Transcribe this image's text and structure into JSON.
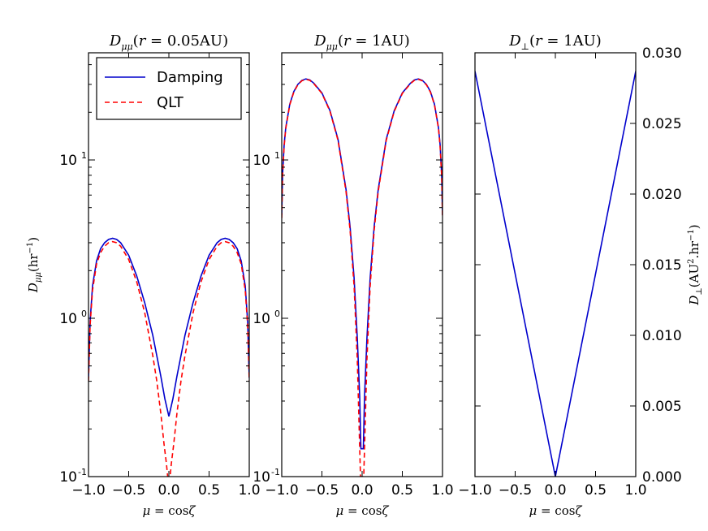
{
  "chart_data": [
    {
      "type": "line",
      "title": "D_μμ(r = 0.05AU)",
      "xlabel": "μ = cos ζ",
      "ylabel": "D_μμ(hr⁻¹)",
      "yscale": "log",
      "xlim": [
        -1.0,
        1.0
      ],
      "ylim": [
        0.1,
        50
      ],
      "xticks": [
        "−1.0",
        "−0.5",
        "0.0",
        "0.5",
        "1.0"
      ],
      "yticks": [
        "10⁻¹",
        "10⁰",
        "10¹"
      ],
      "legend": {
        "position": "top-left",
        "entries": [
          "Damping",
          "QLT"
        ]
      },
      "series": [
        {
          "name": "Damping",
          "color": "#0000cc",
          "style": "solid",
          "x": [
            -1.0,
            -0.98,
            -0.95,
            -0.9,
            -0.85,
            -0.8,
            -0.75,
            -0.7,
            -0.65,
            -0.6,
            -0.5,
            -0.4,
            -0.3,
            -0.2,
            -0.1,
            -0.05,
            0.0,
            0.05,
            0.1,
            0.2,
            0.3,
            0.4,
            0.5,
            0.6,
            0.65,
            0.7,
            0.75,
            0.8,
            0.85,
            0.9,
            0.95,
            0.98,
            1.0
          ],
          "y": [
            0.42,
            0.95,
            1.6,
            2.3,
            2.75,
            3.0,
            3.15,
            3.2,
            3.15,
            3.0,
            2.5,
            1.85,
            1.25,
            0.78,
            0.43,
            0.31,
            0.24,
            0.31,
            0.43,
            0.78,
            1.25,
            1.85,
            2.5,
            3.0,
            3.15,
            3.2,
            3.15,
            3.0,
            2.75,
            2.3,
            1.6,
            0.95,
            0.42
          ]
        },
        {
          "name": "QLT",
          "color": "#ff0000",
          "style": "dashed",
          "x": [
            -1.0,
            -0.98,
            -0.95,
            -0.9,
            -0.85,
            -0.8,
            -0.75,
            -0.7,
            -0.65,
            -0.6,
            -0.5,
            -0.4,
            -0.3,
            -0.2,
            -0.15,
            -0.1,
            -0.06,
            -0.03,
            -0.015,
            0.015,
            0.03,
            0.06,
            0.1,
            0.15,
            0.2,
            0.3,
            0.4,
            0.5,
            0.6,
            0.65,
            0.7,
            0.75,
            0.8,
            0.85,
            0.9,
            0.95,
            0.98,
            1.0
          ],
          "y": [
            0.4,
            0.9,
            1.5,
            2.2,
            2.6,
            2.85,
            3.0,
            3.05,
            3.0,
            2.85,
            2.35,
            1.7,
            1.08,
            0.58,
            0.4,
            0.25,
            0.16,
            0.12,
            0.1,
            0.1,
            0.12,
            0.16,
            0.25,
            0.4,
            0.58,
            1.08,
            1.7,
            2.35,
            2.85,
            3.0,
            3.05,
            3.0,
            2.85,
            2.6,
            2.2,
            1.5,
            0.9,
            0.4
          ]
        }
      ]
    },
    {
      "type": "line",
      "title": "D_μμ(r = 1AU)",
      "xlabel": "μ = cos ζ",
      "yscale": "log",
      "xlim": [
        -1.0,
        1.0
      ],
      "ylim": [
        0.1,
        50
      ],
      "xticks": [
        "−1.0",
        "−0.5",
        "0.0",
        "0.5",
        "1.0"
      ],
      "yticks": [
        "10⁻¹",
        "10⁰",
        "10¹"
      ],
      "series": [
        {
          "name": "Damping",
          "color": "#0000cc",
          "style": "solid",
          "x": [
            -1.0,
            -0.99,
            -0.97,
            -0.95,
            -0.9,
            -0.85,
            -0.8,
            -0.75,
            -0.7,
            -0.65,
            -0.6,
            -0.5,
            -0.4,
            -0.3,
            -0.2,
            -0.15,
            -0.1,
            -0.06,
            -0.03,
            -0.015,
            0.015,
            0.03,
            0.06,
            0.1,
            0.15,
            0.2,
            0.3,
            0.4,
            0.5,
            0.6,
            0.65,
            0.7,
            0.75,
            0.8,
            0.85,
            0.9,
            0.95,
            0.97,
            0.99,
            1.0
          ],
          "y": [
            4.5,
            8.0,
            12.5,
            16.0,
            22.5,
            27.0,
            30.0,
            31.8,
            32.5,
            32.0,
            30.5,
            26.5,
            20.5,
            13.5,
            6.5,
            3.8,
            1.8,
            0.75,
            0.32,
            0.15,
            0.15,
            0.32,
            0.75,
            1.8,
            3.8,
            6.5,
            13.5,
            20.5,
            26.5,
            30.5,
            32.0,
            32.5,
            31.8,
            30.0,
            27.0,
            22.5,
            16.0,
            12.5,
            8.0,
            4.5
          ]
        },
        {
          "name": "QLT",
          "color": "#ff0000",
          "style": "dashed",
          "x": [
            -1.0,
            -0.99,
            -0.97,
            -0.95,
            -0.9,
            -0.85,
            -0.8,
            -0.75,
            -0.7,
            -0.65,
            -0.6,
            -0.5,
            -0.4,
            -0.3,
            -0.2,
            -0.15,
            -0.1,
            -0.06,
            -0.03,
            -0.02,
            0.02,
            0.03,
            0.06,
            0.1,
            0.15,
            0.2,
            0.3,
            0.4,
            0.5,
            0.6,
            0.65,
            0.7,
            0.75,
            0.8,
            0.85,
            0.9,
            0.95,
            0.97,
            0.99,
            1.0
          ],
          "y": [
            4.3,
            7.8,
            12.2,
            15.8,
            22.3,
            26.8,
            29.8,
            31.6,
            32.3,
            31.8,
            30.3,
            26.3,
            20.3,
            13.3,
            6.3,
            3.6,
            1.6,
            0.55,
            0.15,
            0.1,
            0.1,
            0.15,
            0.55,
            1.6,
            3.6,
            6.3,
            13.3,
            20.3,
            26.3,
            30.3,
            31.8,
            32.3,
            31.6,
            29.8,
            26.8,
            22.3,
            15.8,
            12.2,
            7.8,
            4.3
          ]
        }
      ]
    },
    {
      "type": "line",
      "title": "D_⊥(r = 1AU)",
      "xlabel": "μ = cos ζ",
      "ylabel": "D_⊥(AU².hr⁻¹)",
      "yscale": "linear",
      "yaxis_side": "right",
      "xlim": [
        -1.0,
        1.0
      ],
      "ylim": [
        0.0,
        0.03
      ],
      "xticks": [
        "−1.0",
        "−0.5",
        "0.0",
        "0.5",
        "1.0"
      ],
      "yticks": [
        "0.000",
        "0.005",
        "0.010",
        "0.015",
        "0.020",
        "0.025",
        "0.030"
      ],
      "series": [
        {
          "name": "Damping",
          "color": "#0000cc",
          "style": "solid",
          "x": [
            -1.0,
            0.0,
            1.0
          ],
          "y": [
            0.0287,
            0.0,
            0.0287
          ]
        }
      ]
    }
  ]
}
